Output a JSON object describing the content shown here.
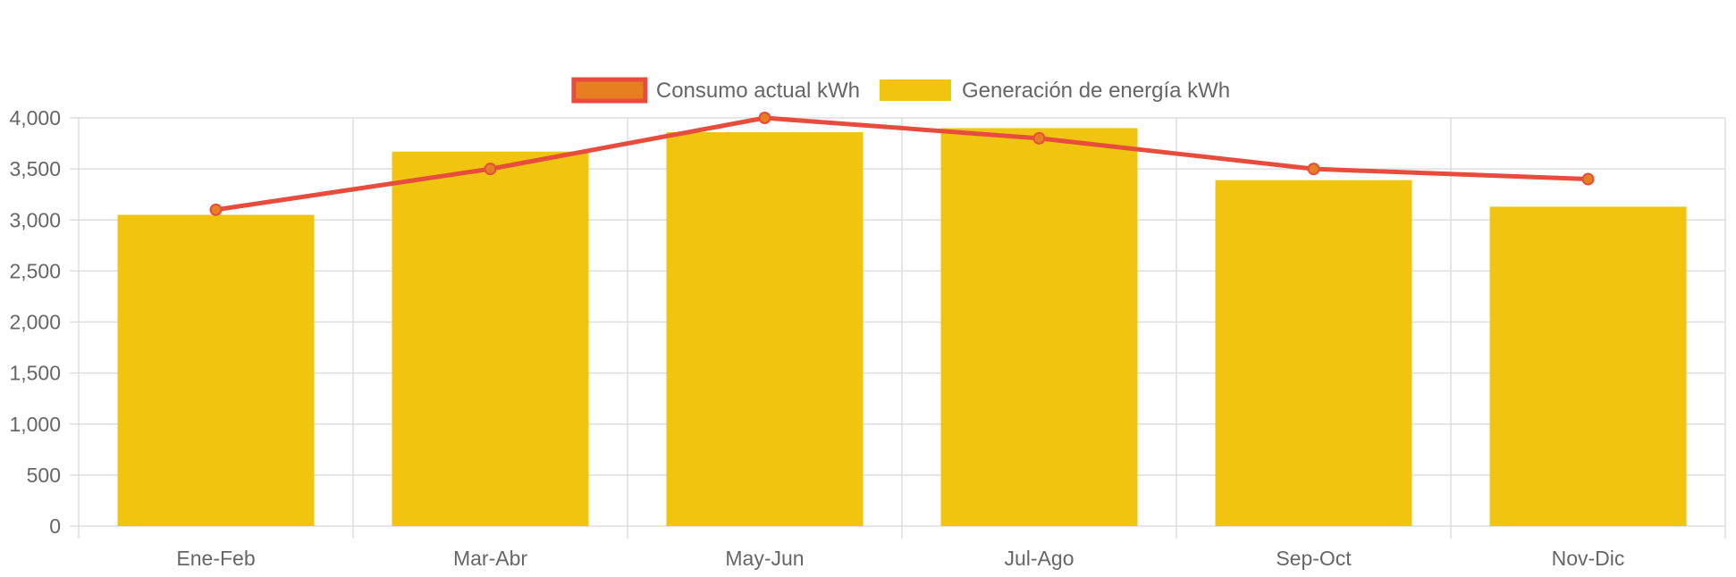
{
  "chart_data": {
    "type": "bar",
    "categories": [
      "Ene-Feb",
      "Mar-Abr",
      "May-Jun",
      "Jul-Ago",
      "Sep-Oct",
      "Nov-Dic"
    ],
    "series": [
      {
        "name": "Consumo actual kWh",
        "type": "line",
        "values": [
          3100,
          3500,
          4000,
          3800,
          3500,
          3400
        ],
        "color": "#e74c3c",
        "point_color": "#e67e22"
      },
      {
        "name": "Generación de energía kWh",
        "type": "bar",
        "values": [
          3050,
          3670,
          3860,
          3900,
          3390,
          3130
        ],
        "color": "#f1c40f"
      }
    ],
    "ylim": [
      0,
      4000
    ],
    "yticks": [
      0,
      500,
      1000,
      1500,
      2000,
      2500,
      3000,
      3500,
      4000
    ],
    "ytick_labels": [
      "0",
      "500",
      "1,000",
      "1,500",
      "2,000",
      "2,500",
      "3,000",
      "3,500",
      "4,000"
    ],
    "grid": true,
    "legend_position": "top-center",
    "grid_color": "#dddddd",
    "text_color": "#666666"
  }
}
